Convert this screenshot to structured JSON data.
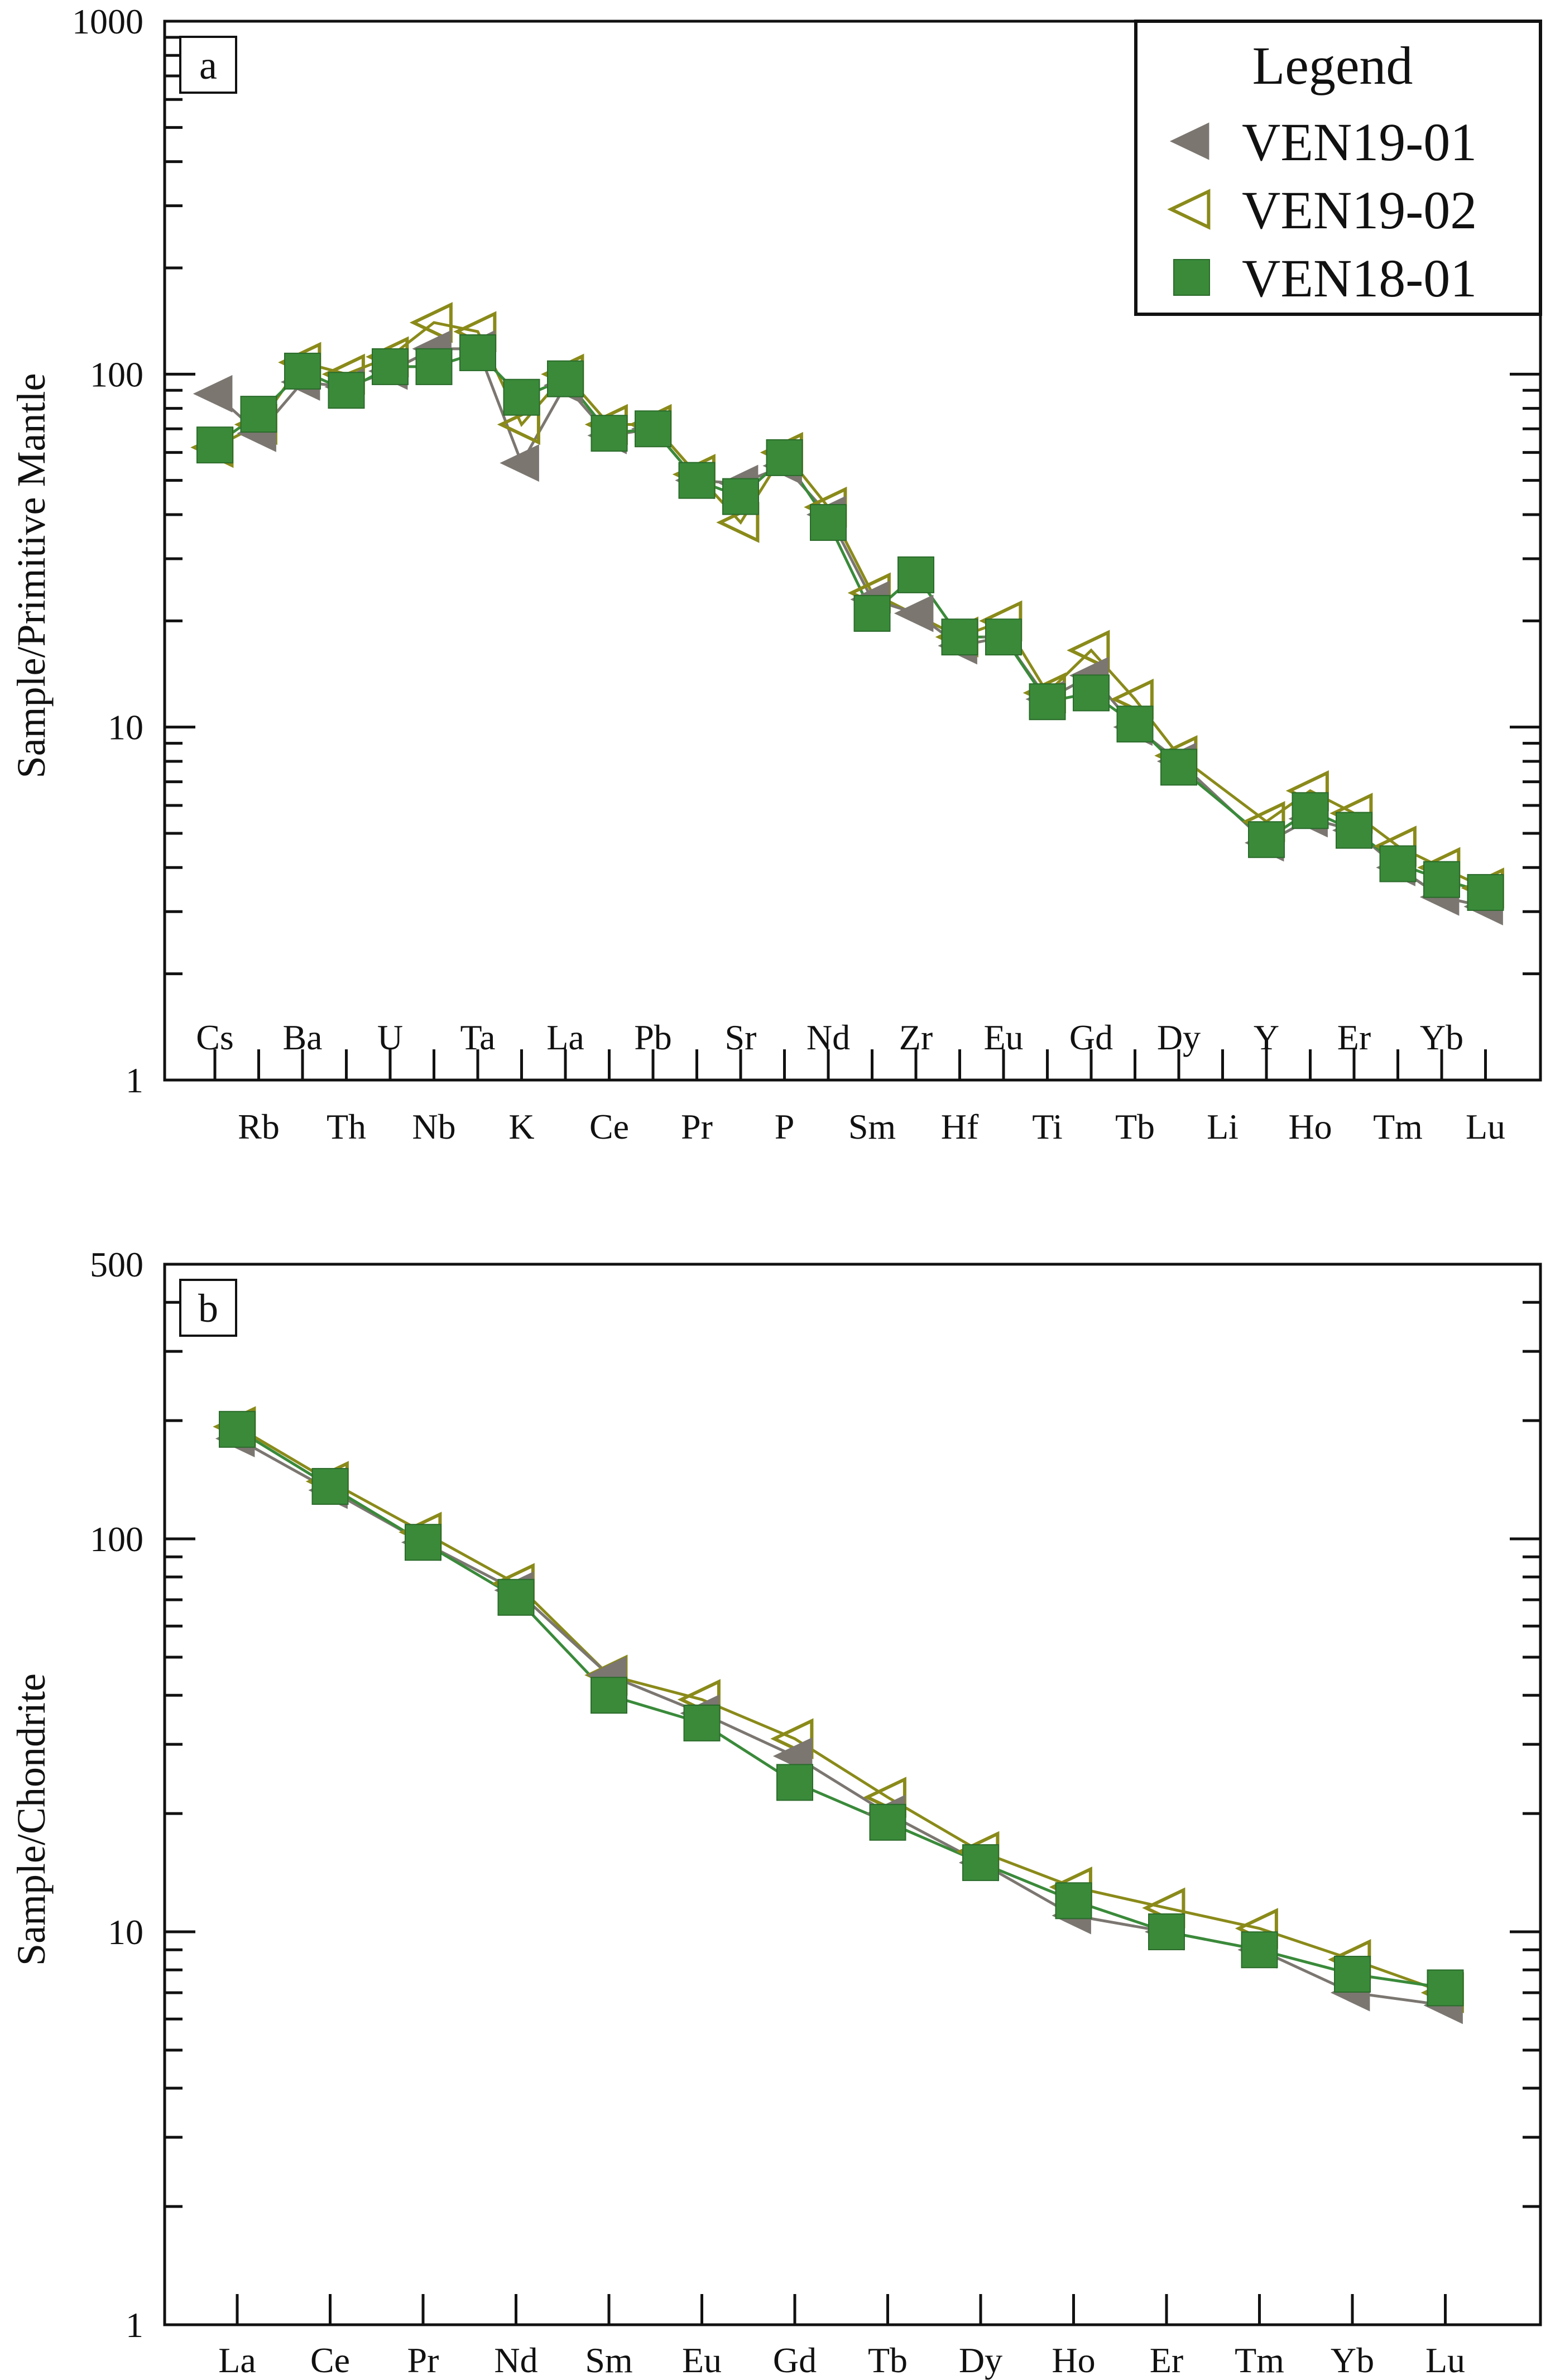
{
  "chart_data": [
    {
      "type": "line",
      "panel_label": "a",
      "ylabel": "Sample/Primitive Mantle",
      "yscale": "log",
      "ylim": [
        1,
        1000
      ],
      "yticks": [
        "1",
        "10",
        "100",
        "1000"
      ],
      "categories": [
        "Cs",
        "Rb",
        "Ba",
        "Th",
        "U",
        "Nb",
        "Ta",
        "K",
        "La",
        "Ce",
        "Pb",
        "Pr",
        "Sr",
        "P",
        "Nd",
        "Sm",
        "Zr",
        "Hf",
        "Eu",
        "Ti",
        "Gd",
        "Tb",
        "Dy",
        "Li",
        "Y",
        "Ho",
        "Er",
        "Tm",
        "Yb",
        "Lu"
      ],
      "legend": {
        "title": "Legend",
        "position": "top-right"
      },
      "series": [
        {
          "name": "VEN19-01",
          "color": "#7b7670",
          "marker": "triangle-left-filled",
          "values": [
            88,
            68,
            95,
            92,
            102,
            118,
            118,
            56,
            93,
            67,
            70,
            50,
            49,
            55,
            40,
            23,
            21,
            17,
            18,
            12,
            14,
            10,
            8,
            null,
            4.7,
            5.5,
            5.1,
            4.0,
            3.3,
            3.1
          ]
        },
        {
          "name": "VEN19-02",
          "color": "#8a8a1a",
          "marker": "triangle-left-open",
          "values": [
            62,
            72,
            108,
            100,
            112,
            140,
            132,
            72,
            100,
            72,
            72,
            52,
            38,
            60,
            42,
            24,
            null,
            18,
            20,
            12.5,
            16.5,
            12,
            8.3,
            null,
            5.4,
            6.6,
            5.7,
            4.6,
            4.0,
            3.5
          ]
        },
        {
          "name": "VEN18-01",
          "color": "#3a8a3a",
          "marker": "square-filled",
          "values": [
            63,
            77,
            102,
            90,
            105,
            105,
            115,
            86,
            97,
            68,
            70,
            50,
            45,
            58,
            38,
            21,
            27,
            18,
            18,
            11.8,
            12.5,
            10.2,
            7.7,
            null,
            4.8,
            5.8,
            5.1,
            4.1,
            3.7,
            3.4
          ]
        }
      ]
    },
    {
      "type": "line",
      "panel_label": "b",
      "ylabel": "Sample/Chondrite",
      "yscale": "log",
      "ylim": [
        1,
        500
      ],
      "yticks": [
        "1",
        "10",
        "100",
        "500"
      ],
      "categories": [
        "La",
        "Ce",
        "Pr",
        "Nd",
        "Sm",
        "Eu",
        "Gd",
        "Tb",
        "Dy",
        "Ho",
        "Er",
        "Tm",
        "Yb",
        "Lu"
      ],
      "series": [
        {
          "name": "VEN19-01",
          "color": "#7b7670",
          "marker": "triangle-left-filled",
          "values": [
            180,
            133,
            98,
            74,
            45,
            36,
            28,
            20,
            15,
            11,
            10,
            9,
            7,
            6.5
          ]
        },
        {
          "name": "VEN19-02",
          "color": "#8a8a1a",
          "marker": "triangle-left-open",
          "values": [
            193,
            140,
            104,
            77,
            45,
            39,
            31,
            22,
            16,
            13,
            11.5,
            10.2,
            8.5,
            7
          ]
        },
        {
          "name": "VEN18-01",
          "color": "#3a8a3a",
          "marker": "square-filled",
          "values": [
            190,
            136,
            98,
            71,
            40,
            34,
            24,
            19,
            15,
            12,
            10,
            9,
            7.8,
            7.2
          ]
        }
      ]
    }
  ]
}
